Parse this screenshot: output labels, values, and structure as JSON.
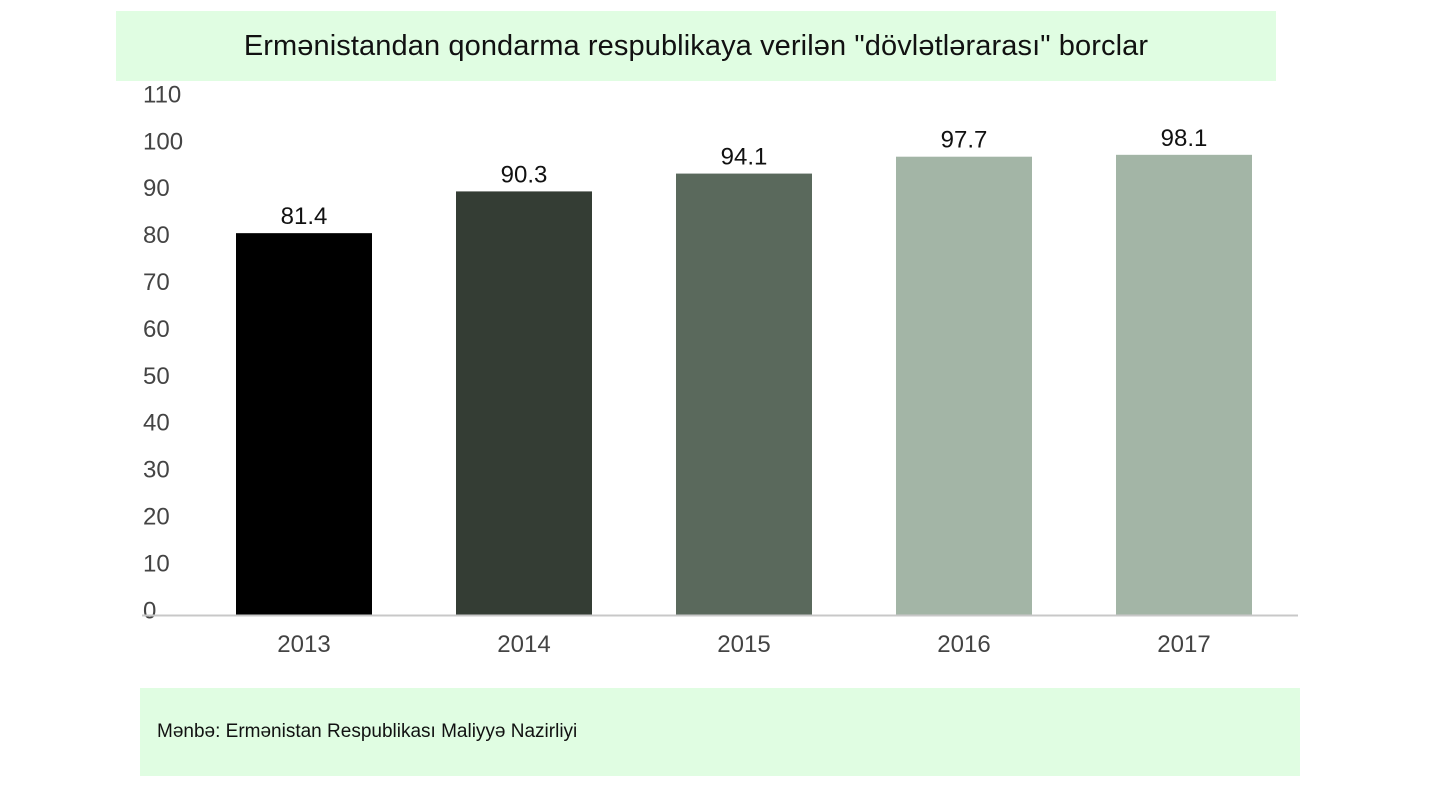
{
  "chart_data": {
    "type": "bar",
    "title": "Ermənistandan qondarma respublikaya verilən \"dövlətlərarası\" borclar",
    "categories": [
      "2013",
      "2014",
      "2015",
      "2016",
      "2017"
    ],
    "values": [
      81.4,
      90.3,
      94.1,
      97.7,
      98.1
    ],
    "data_labels": [
      "81.4",
      "90.3",
      "94.1",
      "97.7",
      "98.1"
    ],
    "bar_colors": [
      "#000000",
      "#343d34",
      "#5a695c",
      "#a3b5a6",
      "#a3b5a6"
    ],
    "yticks": [
      "0",
      "10",
      "20",
      "30",
      "40",
      "50",
      "60",
      "70",
      "80",
      "90",
      "100",
      "110"
    ],
    "ylim": [
      0,
      110
    ],
    "xlabel": "",
    "ylabel": "",
    "grid": false,
    "legend": "none"
  },
  "source": "Mənbə: Ermənistan Respublikası Maliyyə Nazirliyi",
  "colors": {
    "panel_background": "#e0fde2",
    "axis_line": "#c8c8c8",
    "tick_text": "#444444",
    "label_text": "#111111"
  }
}
